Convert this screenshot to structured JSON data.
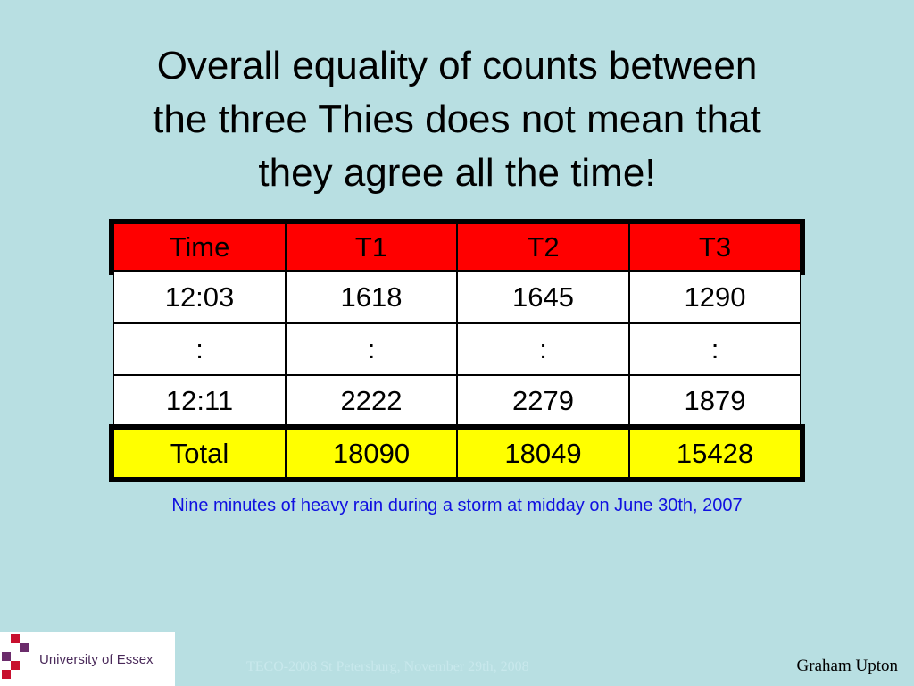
{
  "title": [
    "Overall equality of counts between",
    "the three Thies does not mean that",
    "they agree all the time!"
  ],
  "table": {
    "header": [
      "Time",
      "T1",
      "T2",
      "T3"
    ],
    "rows": [
      [
        "12:03",
        "1618",
        "1645",
        "1290"
      ],
      [
        ":",
        ":",
        ":",
        ":"
      ],
      [
        "12:11",
        "2222",
        "2279",
        "1879"
      ]
    ],
    "total": [
      "Total",
      "18090",
      "18049",
      "15428"
    ]
  },
  "caption": "Nine minutes of heavy rain during a storm at midday on June 30th, 2007",
  "footer": {
    "logo": "University of Essex",
    "event": "TECO-2008 St Petersburg, November 29th, 2008",
    "author": "Graham Upton"
  }
}
